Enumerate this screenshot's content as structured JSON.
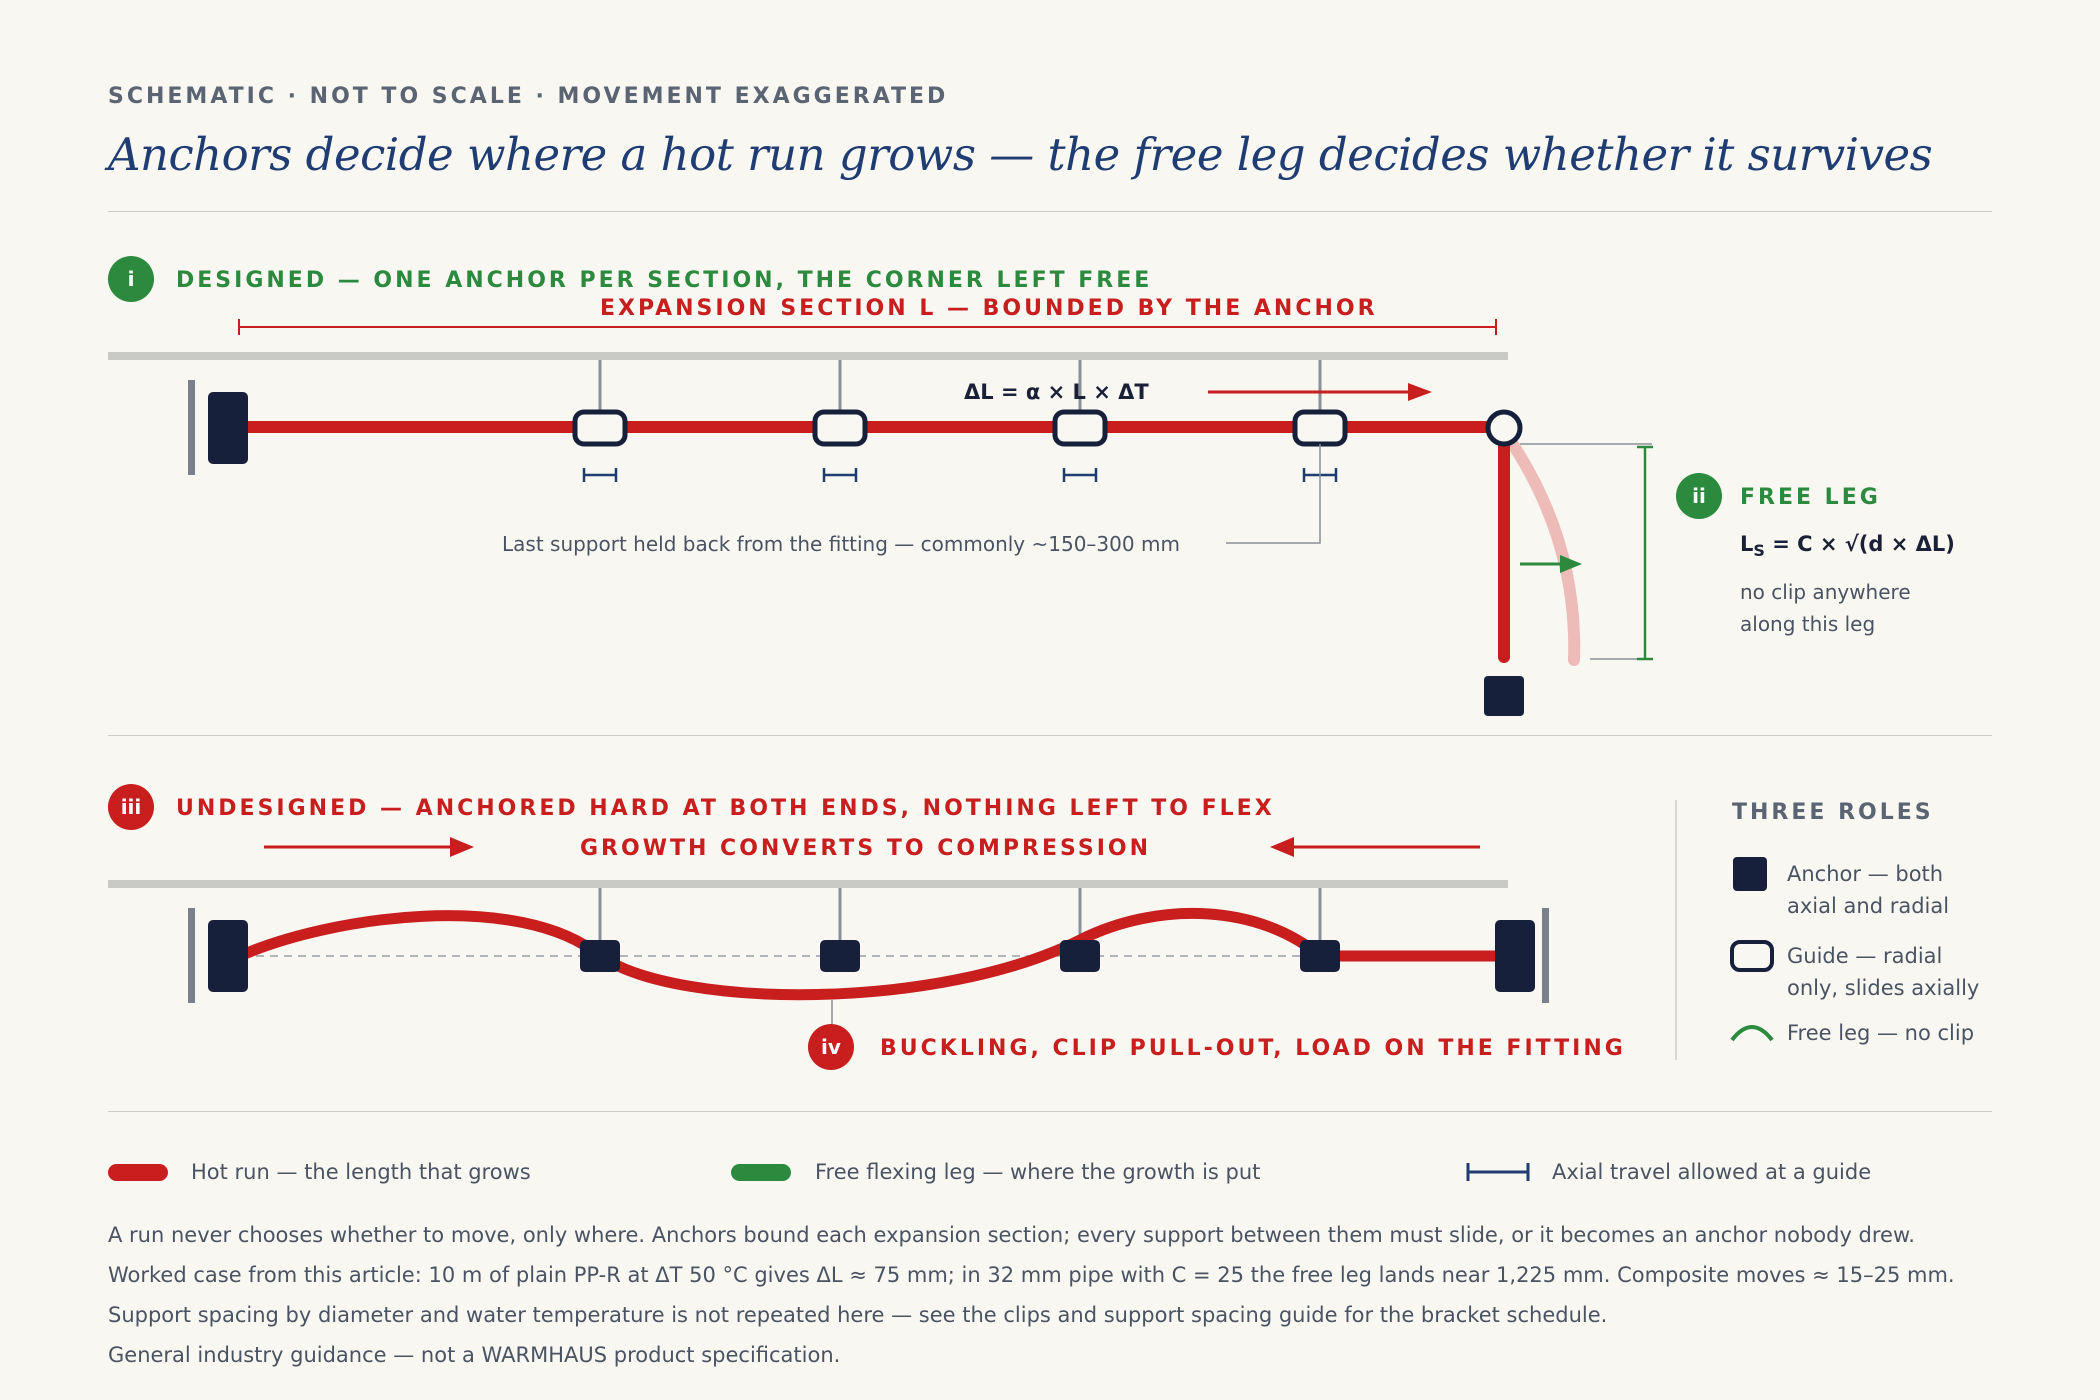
{
  "header": {
    "kicker": "SCHEMATIC · NOT TO SCALE · MOVEMENT EXAGGERATED",
    "title": "Anchors decide where a hot run grows — the free leg decides whether it survives"
  },
  "panel_designed": {
    "badge": "i",
    "heading": "DESIGNED — ONE ANCHOR PER SECTION, THE CORNER LEFT FREE",
    "section_label": "EXPANSION SECTION L — BOUNDED BY THE ANCHOR",
    "formula": "ΔL = α × L × ΔT",
    "support_note": "Last support held back from the fitting — commonly ~150–300 mm"
  },
  "free_leg": {
    "badge": "ii",
    "heading": "FREE LEG",
    "formula_prefix": "L",
    "formula_sub": "S",
    "formula_rest": " = C × √(d × ΔL)",
    "note_line1": "no clip anywhere",
    "note_line2": "along this leg"
  },
  "panel_undesigned": {
    "badge": "iii",
    "heading": "UNDESIGNED — ANCHORED HARD AT BOTH ENDS, NOTHING LEFT TO FLEX",
    "compression_label": "GROWTH CONVERTS TO COMPRESSION",
    "failure_badge": "iv",
    "failure_label": "BUCKLING, CLIP PULL-OUT, LOAD ON THE FITTING"
  },
  "roles": {
    "heading": "THREE ROLES",
    "anchor_line1": "Anchor — both",
    "anchor_line2": "axial and radial",
    "guide_line1": "Guide — radial",
    "guide_line2": "only, slides axially",
    "free_leg": "Free leg — no clip"
  },
  "legend": {
    "hot_run": "Hot run — the length that grows",
    "free_leg": "Free flexing leg — where the growth is put",
    "axial_travel": "Axial travel allowed at a guide"
  },
  "notes": [
    "A run never chooses whether to move, only where. Anchors bound each expansion section; every support between them must slide, or it becomes an anchor nobody drew.",
    "Worked case from this article: 10 m of plain PP-R at ΔT 50 °C gives ΔL ≈ 75 mm; in 32 mm pipe with C = 25 the free leg lands near 1,225 mm. Composite moves ≈ 15–25 mm.",
    "Support spacing by diameter and water temperature is not repeated here — see the clips and support spacing guide for the bracket schedule.",
    "General industry guidance — not a WARMHAUS product specification."
  ],
  "colors": {
    "hot_run": "#c81e1e",
    "free_leg": "#2b8a3e",
    "anchor": "#16203a",
    "ceiling": "#c9c9c6",
    "axial_travel": "#1f3d73"
  }
}
